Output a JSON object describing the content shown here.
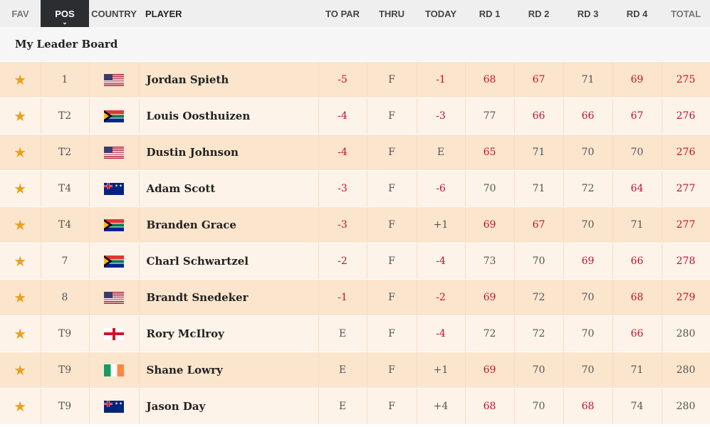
{
  "headers": {
    "fav": "FAV",
    "pos": "POS",
    "pos_sort_icon": "chevron-down-icon",
    "country": "COUNTRY",
    "player": "PLAYER",
    "to_par": "TO PAR",
    "thru": "THRU",
    "today": "TODAY",
    "rd1": "RD 1",
    "rd2": "RD 2",
    "rd3": "RD 3",
    "rd4": "RD 4",
    "total": "TOTAL"
  },
  "section_title": "My Leader Board",
  "colors": {
    "under_par": "#c8102e",
    "star": "#e8a11c",
    "row_odd": "#fbe5cd",
    "row_even": "#fdf3e8"
  },
  "rows": [
    {
      "fav": "★",
      "pos": "1",
      "country": "us",
      "player": "Jordan Spieth",
      "to_par": "-5",
      "thru": "F",
      "today": "-1",
      "rd1": "68",
      "rd2": "67",
      "rd3": "71",
      "rd4": "69",
      "total": "275"
    },
    {
      "fav": "★",
      "pos": "T2",
      "country": "za",
      "player": "Louis Oosthuizen",
      "to_par": "-4",
      "thru": "F",
      "today": "-3",
      "rd1": "77",
      "rd2": "66",
      "rd3": "66",
      "rd4": "67",
      "total": "276"
    },
    {
      "fav": "★",
      "pos": "T2",
      "country": "us",
      "player": "Dustin Johnson",
      "to_par": "-4",
      "thru": "F",
      "today": "E",
      "rd1": "65",
      "rd2": "71",
      "rd3": "70",
      "rd4": "70",
      "total": "276"
    },
    {
      "fav": "★",
      "pos": "T4",
      "country": "au",
      "player": "Adam Scott",
      "to_par": "-3",
      "thru": "F",
      "today": "-6",
      "rd1": "70",
      "rd2": "71",
      "rd3": "72",
      "rd4": "64",
      "total": "277"
    },
    {
      "fav": "★",
      "pos": "T4",
      "country": "za",
      "player": "Branden Grace",
      "to_par": "-3",
      "thru": "F",
      "today": "+1",
      "rd1": "69",
      "rd2": "67",
      "rd3": "70",
      "rd4": "71",
      "total": "277"
    },
    {
      "fav": "★",
      "pos": "7",
      "country": "za",
      "player": "Charl Schwartzel",
      "to_par": "-2",
      "thru": "F",
      "today": "-4",
      "rd1": "73",
      "rd2": "70",
      "rd3": "69",
      "rd4": "66",
      "total": "278"
    },
    {
      "fav": "★",
      "pos": "8",
      "country": "us",
      "player": "Brandt Snedeker",
      "to_par": "-1",
      "thru": "F",
      "today": "-2",
      "rd1": "69",
      "rd2": "72",
      "rd3": "70",
      "rd4": "68",
      "total": "279"
    },
    {
      "fav": "★",
      "pos": "T9",
      "country": "nir",
      "player": "Rory McIlroy",
      "to_par": "E",
      "thru": "F",
      "today": "-4",
      "rd1": "72",
      "rd2": "72",
      "rd3": "70",
      "rd4": "66",
      "total": "280"
    },
    {
      "fav": "★",
      "pos": "T9",
      "country": "ie",
      "player": "Shane Lowry",
      "to_par": "E",
      "thru": "F",
      "today": "+1",
      "rd1": "69",
      "rd2": "70",
      "rd3": "70",
      "rd4": "71",
      "total": "280"
    },
    {
      "fav": "★",
      "pos": "T9",
      "country": "au",
      "player": "Jason Day",
      "to_par": "E",
      "thru": "F",
      "today": "+4",
      "rd1": "68",
      "rd2": "70",
      "rd3": "68",
      "rd4": "74",
      "total": "280"
    }
  ]
}
